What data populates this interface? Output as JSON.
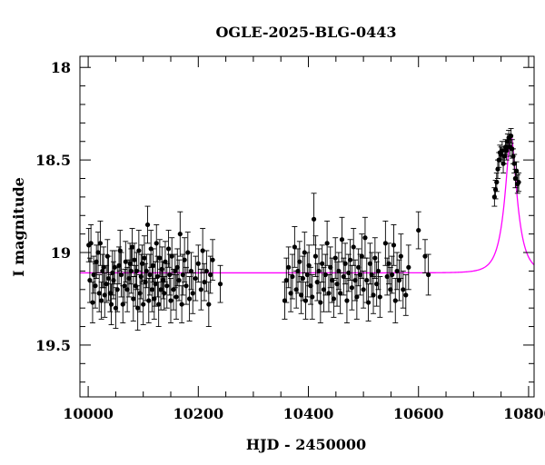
{
  "chart_data": {
    "type": "scatter",
    "title": "OGLE-2025-BLG-0443",
    "xlabel": "HJD - 2450000",
    "ylabel": "I magnitude",
    "xlim": [
      9985,
      10810
    ],
    "ylim": [
      19.78,
      17.94
    ],
    "y_inverted": true,
    "xticks": [
      10000,
      10200,
      10400,
      10600,
      10800
    ],
    "yticks": [
      18,
      18.5,
      19,
      19.5
    ],
    "xtick_labels": [
      "10000",
      "10200",
      "10400",
      "10600",
      "10800"
    ],
    "ytick_labels": [
      "18",
      "18.5",
      "19",
      "19.5"
    ],
    "grid": false,
    "colors": {
      "points": "#000000",
      "model": "#ff00ff"
    },
    "model": {
      "baseline": 19.11,
      "peak_mag": 18.37,
      "t0": 10768,
      "tE": 22,
      "u0": 0.35
    },
    "series": [
      {
        "type": "errorbar-points",
        "points": [
          [
            10001,
            18.96,
            0.09
          ],
          [
            10003,
            19.15,
            0.12
          ],
          [
            10005,
            18.95,
            0.1
          ],
          [
            10008,
            19.27,
            0.11
          ],
          [
            10010,
            19.12,
            0.1
          ],
          [
            10013,
            19.18,
            0.12
          ],
          [
            10015,
            19.05,
            0.09
          ],
          [
            10018,
            19.0,
            0.11
          ],
          [
            10020,
            19.22,
            0.1
          ],
          [
            10022,
            18.95,
            0.12
          ],
          [
            10024,
            19.26,
            0.1
          ],
          [
            10026,
            19.1,
            0.09
          ],
          [
            10028,
            19.08,
            0.11
          ],
          [
            10030,
            19.23,
            0.12
          ],
          [
            10033,
            19.17,
            0.1
          ],
          [
            10035,
            19.02,
            0.09
          ],
          [
            10037,
            19.14,
            0.12
          ],
          [
            10040,
            19.22,
            0.1
          ],
          [
            10042,
            19.28,
            0.11
          ],
          [
            10044,
            19.11,
            0.12
          ],
          [
            10046,
            19.15,
            0.1
          ],
          [
            10048,
            19.08,
            0.09
          ],
          [
            10050,
            19.3,
            0.11
          ],
          [
            10053,
            19.2,
            0.12
          ],
          [
            10056,
            19.07,
            0.1
          ],
          [
            10058,
            18.99,
            0.11
          ],
          [
            10060,
            19.12,
            0.12
          ],
          [
            10063,
            19.28,
            0.1
          ],
          [
            10066,
            19.18,
            0.09
          ],
          [
            10068,
            19.05,
            0.11
          ],
          [
            10071,
            19.2,
            0.12
          ],
          [
            10074,
            19.14,
            0.1
          ],
          [
            10076,
            19.06,
            0.11
          ],
          [
            10078,
            19.1,
            0.12
          ],
          [
            10080,
            18.97,
            0.1
          ],
          [
            10082,
            19.25,
            0.12
          ],
          [
            10084,
            19.04,
            0.09
          ],
          [
            10086,
            19.18,
            0.11
          ],
          [
            10088,
            19.1,
            0.1
          ],
          [
            10090,
            19.3,
            0.12
          ],
          [
            10092,
            18.99,
            0.11
          ],
          [
            10094,
            19.22,
            0.1
          ],
          [
            10096,
            19.13,
            0.12
          ],
          [
            10098,
            19.06,
            0.1
          ],
          [
            10100,
            19.28,
            0.11
          ],
          [
            10102,
            19.03,
            0.12
          ],
          [
            10104,
            19.16,
            0.1
          ],
          [
            10106,
            19.1,
            0.09
          ],
          [
            10108,
            18.85,
            0.1
          ],
          [
            10110,
            19.26,
            0.12
          ],
          [
            10112,
            19.12,
            0.11
          ],
          [
            10114,
            18.98,
            0.1
          ],
          [
            10116,
            19.2,
            0.12
          ],
          [
            10118,
            19.07,
            0.09
          ],
          [
            10120,
            19.25,
            0.11
          ],
          [
            10122,
            19.17,
            0.12
          ],
          [
            10124,
            18.95,
            0.1
          ],
          [
            10126,
            19.13,
            0.11
          ],
          [
            10128,
            19.28,
            0.12
          ],
          [
            10130,
            19.03,
            0.1
          ],
          [
            10132,
            19.2,
            0.11
          ],
          [
            10134,
            19.09,
            0.12
          ],
          [
            10136,
            19.15,
            0.1
          ],
          [
            10138,
            19.22,
            0.09
          ],
          [
            10140,
            19.05,
            0.11
          ],
          [
            10143,
            19.18,
            0.12
          ],
          [
            10146,
            18.98,
            0.1
          ],
          [
            10148,
            19.12,
            0.11
          ],
          [
            10150,
            19.26,
            0.12
          ],
          [
            10152,
            19.02,
            0.1
          ],
          [
            10155,
            19.2,
            0.11
          ],
          [
            10158,
            19.1,
            0.09
          ],
          [
            10160,
            19.24,
            0.12
          ],
          [
            10162,
            19.08,
            0.1
          ],
          [
            10165,
            19.15,
            0.11
          ],
          [
            10167,
            18.9,
            0.12
          ],
          [
            10170,
            19.28,
            0.1
          ],
          [
            10172,
            19.12,
            0.11
          ],
          [
            10175,
            19.04,
            0.12
          ],
          [
            10178,
            19.18,
            0.1
          ],
          [
            10181,
            19.0,
            0.11
          ],
          [
            10184,
            19.25,
            0.12
          ],
          [
            10187,
            19.1,
            0.1
          ],
          [
            10190,
            19.22,
            0.11
          ],
          [
            10195,
            19.14,
            0.12
          ],
          [
            10200,
            19.06,
            0.1
          ],
          [
            10205,
            19.2,
            0.11
          ],
          [
            10208,
            18.99,
            0.12
          ],
          [
            10211,
            19.16,
            0.1
          ],
          [
            10215,
            19.1,
            0.11
          ],
          [
            10219,
            19.28,
            0.12
          ],
          [
            10222,
            19.12,
            0.1
          ],
          [
            10226,
            19.04,
            0.11
          ],
          [
            10240,
            19.17,
            0.1
          ],
          [
            10357,
            19.26,
            0.1
          ],
          [
            10360,
            19.15,
            0.12
          ],
          [
            10364,
            19.08,
            0.11
          ],
          [
            10368,
            19.22,
            0.1
          ],
          [
            10371,
            19.13,
            0.12
          ],
          [
            10375,
            18.97,
            0.11
          ],
          [
            10378,
            19.2,
            0.1
          ],
          [
            10381,
            19.1,
            0.12
          ],
          [
            10384,
            19.05,
            0.11
          ],
          [
            10387,
            19.23,
            0.1
          ],
          [
            10390,
            19.14,
            0.12
          ],
          [
            10393,
            19.0,
            0.11
          ],
          [
            10395,
            19.26,
            0.1
          ],
          [
            10398,
            19.12,
            0.12
          ],
          [
            10401,
            19.07,
            0.11
          ],
          [
            10404,
            19.18,
            0.1
          ],
          [
            10407,
            19.24,
            0.12
          ],
          [
            10410,
            18.82,
            0.14
          ],
          [
            10413,
            19.02,
            0.11
          ],
          [
            10416,
            19.16,
            0.1
          ],
          [
            10419,
            19.1,
            0.12
          ],
          [
            10422,
            19.27,
            0.11
          ],
          [
            10425,
            19.06,
            0.1
          ],
          [
            10428,
            19.2,
            0.12
          ],
          [
            10431,
            19.12,
            0.11
          ],
          [
            10434,
            18.95,
            0.12
          ],
          [
            10437,
            19.22,
            0.1
          ],
          [
            10440,
            19.08,
            0.11
          ],
          [
            10443,
            19.15,
            0.12
          ],
          [
            10446,
            19.25,
            0.1
          ],
          [
            10449,
            19.03,
            0.11
          ],
          [
            10452,
            19.17,
            0.12
          ],
          [
            10455,
            19.1,
            0.1
          ],
          [
            10458,
            19.22,
            0.11
          ],
          [
            10461,
            18.93,
            0.12
          ],
          [
            10464,
            19.13,
            0.1
          ],
          [
            10467,
            19.06,
            0.11
          ],
          [
            10470,
            19.26,
            0.12
          ],
          [
            10473,
            19.11,
            0.1
          ],
          [
            10476,
            19.04,
            0.11
          ],
          [
            10479,
            19.19,
            0.12
          ],
          [
            10482,
            18.97,
            0.1
          ],
          [
            10485,
            19.15,
            0.11
          ],
          [
            10488,
            19.24,
            0.12
          ],
          [
            10491,
            19.08,
            0.1
          ],
          [
            10494,
            19.12,
            0.11
          ],
          [
            10497,
            19.02,
            0.12
          ],
          [
            10500,
            19.2,
            0.1
          ],
          [
            10503,
            18.92,
            0.11
          ],
          [
            10506,
            19.15,
            0.12
          ],
          [
            10509,
            19.27,
            0.1
          ],
          [
            10512,
            19.06,
            0.11
          ],
          [
            10515,
            19.12,
            0.12
          ],
          [
            10518,
            19.23,
            0.1
          ],
          [
            10521,
            19.03,
            0.11
          ],
          [
            10524,
            19.17,
            0.12
          ],
          [
            10527,
            19.1,
            0.1
          ],
          [
            10530,
            19.24,
            0.11
          ],
          [
            10540,
            18.95,
            0.12
          ],
          [
            10543,
            19.13,
            0.1
          ],
          [
            10546,
            19.06,
            0.11
          ],
          [
            10549,
            19.2,
            0.12
          ],
          [
            10552,
            19.12,
            0.1
          ],
          [
            10555,
            18.96,
            0.11
          ],
          [
            10558,
            19.26,
            0.12
          ],
          [
            10561,
            19.1,
            0.1
          ],
          [
            10565,
            19.15,
            0.11
          ],
          [
            10568,
            19.02,
            0.12
          ],
          [
            10572,
            19.2,
            0.1
          ],
          [
            10577,
            19.23,
            0.11
          ],
          [
            10582,
            19.08,
            0.12
          ],
          [
            10600,
            18.88,
            0.1
          ],
          [
            10612,
            19.02,
            0.09
          ],
          [
            10618,
            19.12,
            0.11
          ],
          [
            10738,
            18.7,
            0.05
          ],
          [
            10740,
            18.66,
            0.05
          ],
          [
            10742,
            18.62,
            0.05
          ],
          [
            10744,
            18.55,
            0.05
          ],
          [
            10746,
            18.5,
            0.04
          ],
          [
            10748,
            18.46,
            0.04
          ],
          [
            10750,
            18.47,
            0.04
          ],
          [
            10752,
            18.45,
            0.05
          ],
          [
            10754,
            18.52,
            0.05
          ],
          [
            10756,
            18.48,
            0.04
          ],
          [
            10758,
            18.43,
            0.04
          ],
          [
            10760,
            18.45,
            0.05
          ],
          [
            10762,
            18.4,
            0.04
          ],
          [
            10764,
            18.38,
            0.04
          ],
          [
            10766,
            18.43,
            0.05
          ],
          [
            10768,
            18.37,
            0.04
          ],
          [
            10770,
            18.44,
            0.05
          ],
          [
            10772,
            18.48,
            0.04
          ],
          [
            10774,
            18.52,
            0.05
          ],
          [
            10776,
            18.6,
            0.05
          ],
          [
            10778,
            18.56,
            0.05
          ],
          [
            10780,
            18.63,
            0.05
          ],
          [
            10782,
            18.62,
            0.05
          ]
        ]
      }
    ]
  }
}
